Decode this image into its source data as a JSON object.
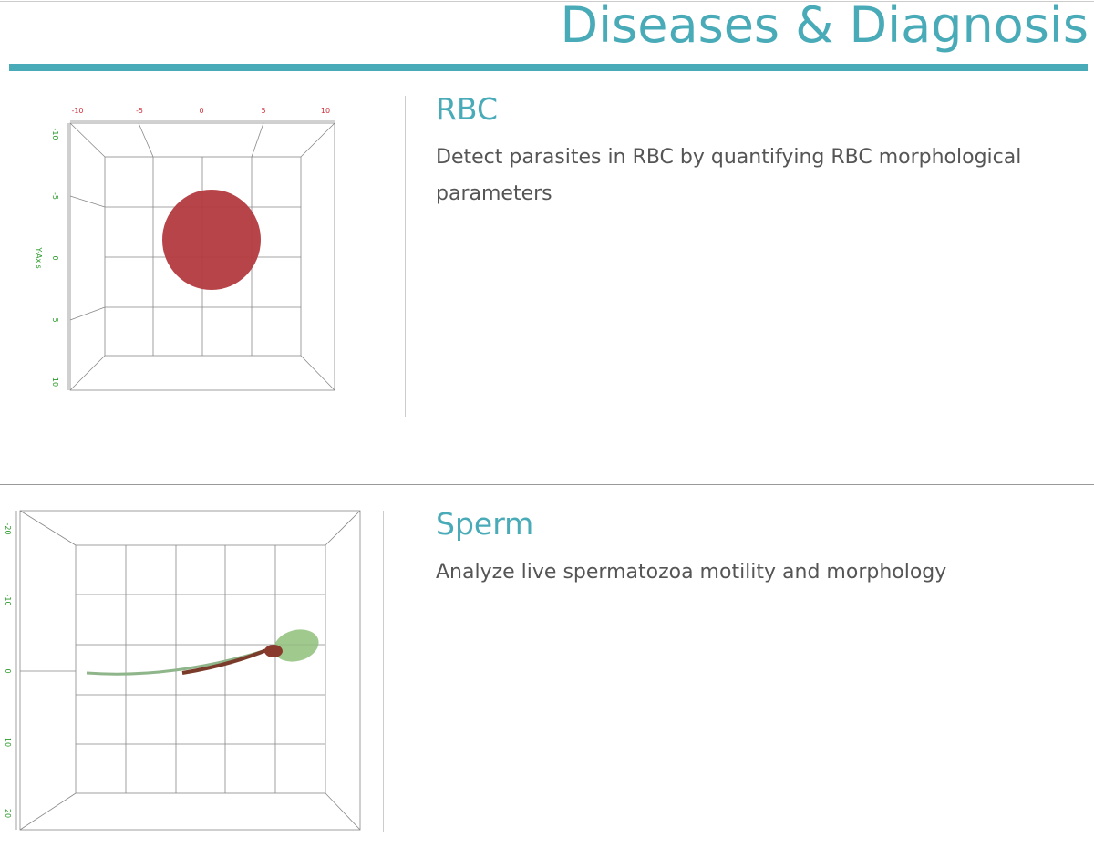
{
  "header": {
    "title": "Diseases & Diagnosis"
  },
  "sections": [
    {
      "title": "RBC",
      "description": "Detect parasites in RBC by quantifying RBC morphological parameters",
      "figure": {
        "top_ticks": [
          -10,
          -5,
          0,
          5,
          10
        ],
        "left_ticks": [
          -10,
          -5,
          0,
          5,
          10
        ],
        "axis_label": "Y-Axis"
      }
    },
    {
      "title": "Sperm",
      "description": "Analyze live spermatozoa motility and morphology",
      "figure": {
        "left_ticks": [
          -20,
          -10,
          0,
          10,
          20
        ]
      }
    }
  ]
}
